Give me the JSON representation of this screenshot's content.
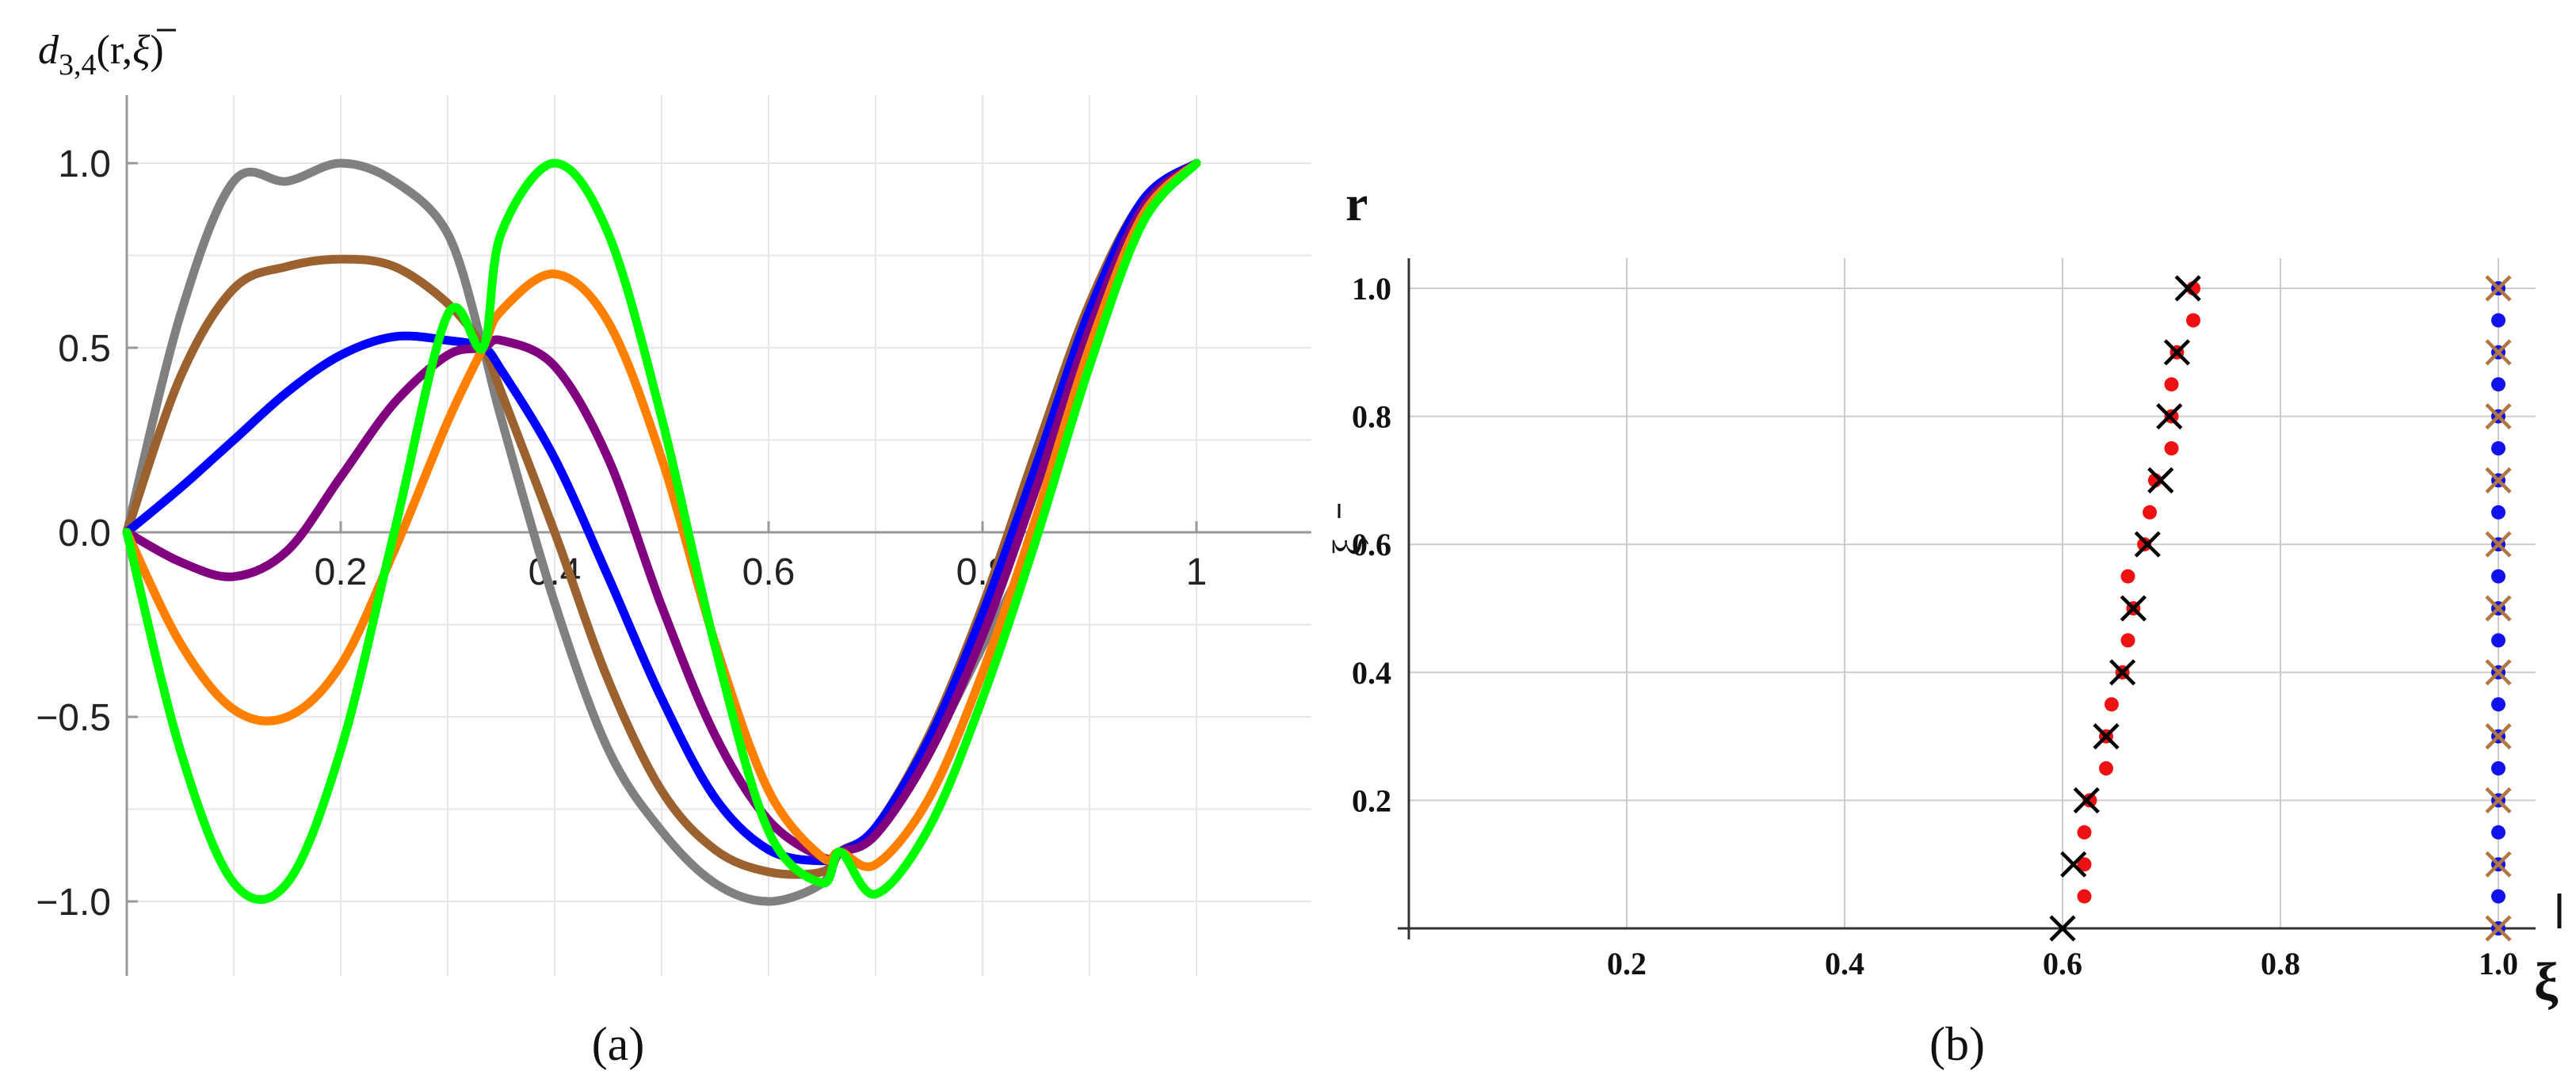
{
  "panel_a": {
    "caption": "(a)",
    "ylabel_main": "d",
    "ylabel_sub": "3,4",
    "ylabel_args": "(r,",
    "ylabel_xi": "ξ",
    "ylabel_close": ")"
  },
  "panel_b": {
    "caption": "(b)",
    "ylabel": "r",
    "ylabel_secondary": "ξ",
    "xlabel": "ξ"
  },
  "chart_data": [
    {
      "type": "line",
      "panel": "(a)",
      "xlim": [
        0,
        1.1
      ],
      "ylim": [
        -1.2,
        1.2
      ],
      "xticks": [
        0.2,
        0.4,
        0.6,
        0.8,
        1
      ],
      "xtick_labels": [
        "0.2",
        "0.4",
        "0.6",
        "0.8",
        "1"
      ],
      "yticks": [
        -1.0,
        -0.5,
        0.0,
        0.5,
        1.0
      ],
      "ytick_labels": [
        "−1.0",
        "−0.5",
        "0.0",
        "0.5",
        "1.0"
      ],
      "grid": true,
      "x": [
        0,
        0.05,
        0.1,
        0.15,
        0.2,
        0.25,
        0.3,
        0.333,
        0.35,
        0.4,
        0.45,
        0.5,
        0.55,
        0.6,
        0.65,
        0.667,
        0.7,
        0.75,
        0.8,
        0.85,
        0.9,
        0.95,
        1.0
      ],
      "series": [
        {
          "color": "#808080",
          "values": [
            0,
            0.588,
            0.951,
            0.951,
            1.0,
            0.951,
            0.809,
            0.5,
            0.309,
            -0.191,
            -0.588,
            -0.809,
            -0.951,
            -1.0,
            -0.951,
            -0.866,
            -0.809,
            -0.588,
            -0.309,
            0.0,
            0.5,
            0.866,
            1.0
          ]
        },
        {
          "color": "#9B6230",
          "values": [
            0,
            0.42,
            0.66,
            0.72,
            0.74,
            0.72,
            0.62,
            0.5,
            0.38,
            0.0,
            -0.4,
            -0.7,
            -0.86,
            -0.92,
            -0.92,
            -0.866,
            -0.8,
            -0.55,
            -0.2,
            0.22,
            0.62,
            0.9,
            1.0
          ]
        },
        {
          "color": "#0000FF",
          "values": [
            0,
            0.12,
            0.25,
            0.38,
            0.48,
            0.53,
            0.52,
            0.5,
            0.44,
            0.2,
            -0.12,
            -0.45,
            -0.72,
            -0.86,
            -0.89,
            -0.866,
            -0.8,
            -0.56,
            -0.22,
            0.18,
            0.6,
            0.9,
            1.0
          ]
        },
        {
          "color": "#800080",
          "values": [
            0,
            -0.08,
            -0.12,
            -0.05,
            0.15,
            0.35,
            0.48,
            0.5,
            0.52,
            0.45,
            0.2,
            -0.2,
            -0.55,
            -0.78,
            -0.88,
            -0.866,
            -0.82,
            -0.6,
            -0.28,
            0.12,
            0.55,
            0.88,
            1.0
          ]
        },
        {
          "color": "#FF8000",
          "values": [
            0,
            -0.3,
            -0.48,
            -0.5,
            -0.36,
            -0.05,
            0.3,
            0.5,
            0.6,
            0.7,
            0.57,
            0.2,
            -0.3,
            -0.7,
            -0.88,
            -0.866,
            -0.9,
            -0.72,
            -0.38,
            0.04,
            0.5,
            0.86,
            1.0
          ]
        },
        {
          "color": "#00FF00",
          "values": [
            0,
            -0.59,
            -0.95,
            -0.95,
            -0.59,
            0.0,
            0.59,
            0.5,
            0.81,
            1.0,
            0.81,
            0.31,
            -0.31,
            -0.81,
            -0.95,
            -0.866,
            -0.98,
            -0.8,
            -0.45,
            -0.02,
            0.45,
            0.84,
            1.0
          ]
        }
      ]
    },
    {
      "type": "scatter",
      "panel": "(b)",
      "xlim": [
        0,
        1.0
      ],
      "ylim": [
        0,
        1.0
      ],
      "xticks": [
        0.2,
        0.4,
        0.6,
        0.8,
        1.0
      ],
      "xtick_labels": [
        "0.2",
        "0.4",
        "0.6",
        "0.8",
        "1.0"
      ],
      "yticks": [
        0.2,
        0.4,
        0.6,
        0.8,
        1.0
      ],
      "ytick_labels": [
        "0.2",
        "0.4",
        "0.6",
        "0.8",
        "1.0"
      ],
      "grid": true,
      "series": [
        {
          "marker": "dot",
          "color": "#EE1111",
          "x": [
            0.62,
            0.62,
            0.62,
            0.625,
            0.64,
            0.64,
            0.645,
            0.655,
            0.66,
            0.665,
            0.66,
            0.675,
            0.68,
            0.685,
            0.7,
            0.7,
            0.7,
            0.705,
            0.72,
            0.72
          ],
          "y": [
            0.05,
            0.1,
            0.15,
            0.2,
            0.25,
            0.3,
            0.35,
            0.4,
            0.45,
            0.5,
            0.55,
            0.6,
            0.65,
            0.7,
            0.75,
            0.8,
            0.85,
            0.9,
            0.95,
            1.0
          ]
        },
        {
          "marker": "x",
          "color": "#000000",
          "x": [
            0.6,
            0.61,
            0.622,
            0.64,
            0.655,
            0.665,
            0.678,
            0.69,
            0.698,
            0.705,
            0.715
          ],
          "y": [
            0.0,
            0.1,
            0.2,
            0.3,
            0.4,
            0.5,
            0.6,
            0.7,
            0.8,
            0.9,
            1.0
          ]
        },
        {
          "marker": "dot",
          "color": "#1111EE",
          "x": [
            1.0,
            1.0,
            1.0,
            1.0,
            1.0,
            1.0,
            1.0,
            1.0,
            1.0,
            1.0,
            1.0,
            1.0,
            1.0,
            1.0,
            1.0,
            1.0,
            1.0,
            1.0,
            1.0,
            1.0,
            1.0
          ],
          "y": [
            0.0,
            0.05,
            0.1,
            0.15,
            0.2,
            0.25,
            0.3,
            0.35,
            0.4,
            0.45,
            0.5,
            0.55,
            0.6,
            0.65,
            0.7,
            0.75,
            0.8,
            0.85,
            0.9,
            0.95,
            1.0
          ]
        },
        {
          "marker": "x",
          "color": "#B07840",
          "x": [
            1.0,
            1.0,
            1.0,
            1.0,
            1.0,
            1.0,
            1.0,
            1.0,
            1.0,
            1.0,
            1.0
          ],
          "y": [
            0.0,
            0.1,
            0.2,
            0.3,
            0.4,
            0.5,
            0.6,
            0.7,
            0.8,
            0.9,
            1.0
          ]
        }
      ]
    }
  ]
}
